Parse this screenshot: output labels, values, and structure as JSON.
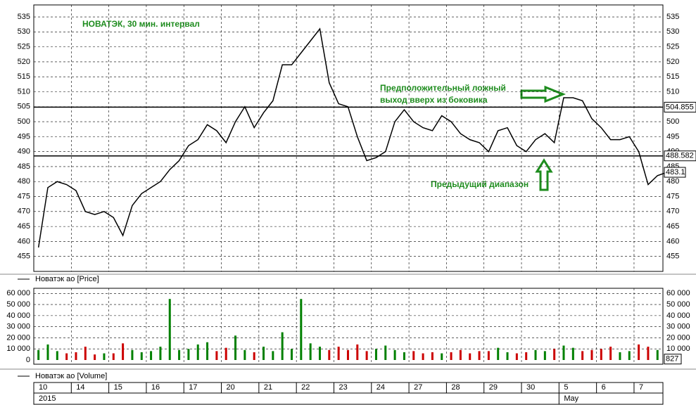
{
  "chart_data": [
    {
      "type": "line",
      "name": "Новатэк ао [Price]",
      "title": "НОВАТЭК, 30 мин. интервал",
      "color": "#000000",
      "annotations": [
        "Предположительный ложный",
        "выход вверх из боковика",
        "Предыдущий диапазон"
      ],
      "x": [
        0.125,
        0.375,
        0.625,
        0.875,
        1.125,
        1.375,
        1.625,
        1.875,
        2.125,
        2.375,
        2.625,
        2.875,
        3.125,
        3.375,
        3.625,
        3.875,
        4.125,
        4.375,
        4.625,
        4.875,
        5.125,
        5.375,
        5.625,
        5.875,
        6.125,
        6.375,
        6.625,
        6.875,
        7.125,
        7.375,
        7.625,
        7.875,
        8.125,
        8.375,
        8.625,
        8.875,
        9.125,
        9.375,
        9.625,
        9.875,
        10.125,
        10.375,
        10.625,
        10.875,
        11.125,
        11.375,
        11.625,
        11.875,
        12.125,
        12.375,
        12.625,
        12.875,
        13.125,
        13.375,
        13.625,
        13.875,
        14.125,
        14.375,
        14.625,
        14.875,
        15.125,
        15.375,
        15.625,
        15.875,
        16.125,
        16.375,
        16.625,
        16.875
      ],
      "values": [
        458,
        478,
        480,
        479,
        477,
        470,
        469,
        470,
        468,
        462,
        472,
        476,
        478,
        480,
        484,
        487,
        492,
        494,
        499,
        497,
        493,
        500,
        505,
        498,
        503,
        507,
        519,
        519,
        523,
        527,
        531,
        513,
        506,
        505,
        495,
        487,
        488,
        490,
        500,
        504,
        500,
        498,
        497,
        502,
        500,
        496,
        494,
        493,
        490,
        497,
        498,
        492,
        490,
        494,
        496,
        493,
        508,
        508,
        507,
        501,
        498,
        494,
        494,
        495,
        490,
        479,
        482,
        483.1
      ],
      "xlim": [
        0,
        16.77
      ],
      "xticks": [
        {
          "value": 0,
          "label": "10"
        },
        {
          "value": 1,
          "label": "14"
        },
        {
          "value": 2,
          "label": "15"
        },
        {
          "value": 3,
          "label": "16"
        },
        {
          "value": 4,
          "label": "17"
        },
        {
          "value": 5,
          "label": "20"
        },
        {
          "value": 6,
          "label": "21"
        },
        {
          "value": 7,
          "label": "22"
        },
        {
          "value": 8,
          "label": "23"
        },
        {
          "value": 9,
          "label": "24"
        },
        {
          "value": 10,
          "label": "27"
        },
        {
          "value": 11,
          "label": "28"
        },
        {
          "value": 12,
          "label": "29"
        },
        {
          "value": 13,
          "label": "30"
        },
        {
          "value": 14,
          "label": "5"
        },
        {
          "value": 15,
          "label": "6"
        },
        {
          "value": 16,
          "label": "7"
        }
      ],
      "period_ticks": [
        {
          "value": 0,
          "label": "2015"
        },
        {
          "value": 14,
          "label": "May"
        }
      ],
      "ylim": [
        450,
        539
      ],
      "yticks": [
        455,
        460,
        465,
        470,
        475,
        480,
        485,
        490,
        495,
        500,
        505,
        510,
        515,
        520,
        525,
        530,
        535
      ],
      "hlines": [
        {
          "value": 504.855,
          "label": "504.855"
        },
        {
          "value": 488.582,
          "label": "488.582"
        }
      ],
      "last_value": {
        "value": 483.1,
        "label": "483.1"
      },
      "grid": true
    },
    {
      "type": "bar",
      "name": "Новатэк ао [Volume]",
      "up_color": "#008000",
      "down_color": "#cc0000",
      "values": [
        9000,
        14000,
        8000,
        6000,
        7000,
        12000,
        5000,
        6000,
        6000,
        15000,
        9000,
        7000,
        8000,
        12000,
        55000,
        9000,
        10000,
        14000,
        16000,
        8000,
        11000,
        22000,
        9000,
        7000,
        12000,
        8000,
        25000,
        10000,
        55000,
        15000,
        12000,
        9000,
        12000,
        9000,
        14000,
        8000,
        10000,
        13000,
        9000,
        7000,
        8000,
        6000,
        7000,
        6000,
        7000,
        9000,
        6000,
        8000,
        8000,
        11000,
        7000,
        6000,
        7000,
        9000,
        8000,
        10000,
        13000,
        11000,
        8000,
        9000,
        10000,
        12000,
        7000,
        8000,
        14000,
        12000,
        9000,
        827
      ],
      "ylim": [
        0,
        64000
      ],
      "yticks": [
        0,
        {
          "value": 10000,
          "label": "10 000"
        },
        {
          "value": 20000,
          "label": "20 000"
        },
        {
          "value": 30000,
          "label": "30 000"
        },
        {
          "value": 40000,
          "label": "40 000"
        },
        {
          "value": 50000,
          "label": "50 000"
        },
        {
          "value": 60000,
          "label": "60 000"
        }
      ],
      "last_value": {
        "value": 827,
        "label": "827"
      },
      "grid": true
    }
  ]
}
